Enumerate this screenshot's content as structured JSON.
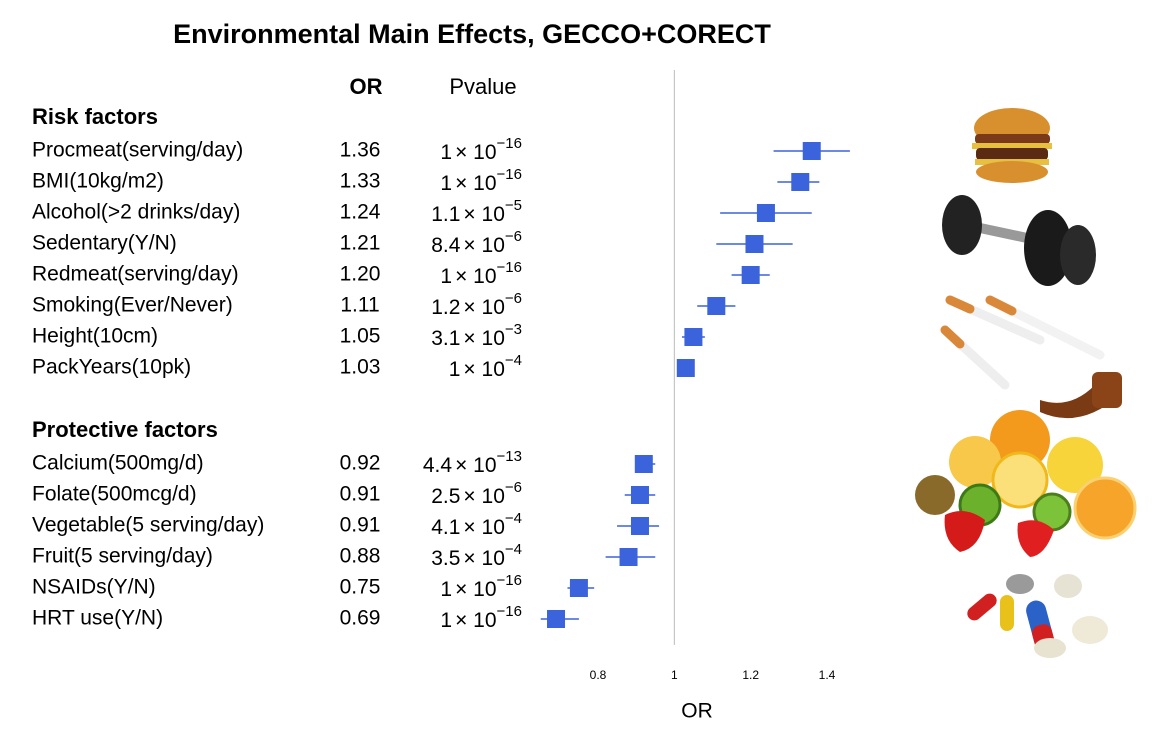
{
  "chart_data": {
    "type": "forest",
    "title": "Environmental Main Effects, GECCO+CORECT",
    "or_header": "OR",
    "pvalue_header": "Pvalue",
    "x_label": "OR",
    "xlim": [
      0.6,
      1.5
    ],
    "xticks": [
      0.8,
      1,
      1.2,
      1.4
    ],
    "reference": 1,
    "color": "#3b63db",
    "groups": [
      {
        "label": "Risk factors",
        "labels": [
          "Procmeat(serving/day)",
          "BMI(10kg/m2)",
          "Alcohol(>2 drinks/day)",
          "Sedentary(Y/N)",
          "Redmeat(serving/day)",
          "Smoking(Ever/Never)",
          "Height(10cm)",
          "PackYears(10pk)"
        ],
        "values": [
          1.36,
          1.33,
          1.24,
          1.21,
          1.2,
          1.11,
          1.05,
          1.03
        ],
        "value_labels": [
          "1.36",
          "1.33",
          "1.24",
          "1.21",
          "1.20",
          "1.11",
          "1.05",
          "1.03"
        ],
        "ci": [
          [
            1.26,
            1.46
          ],
          [
            1.27,
            1.38
          ],
          [
            1.12,
            1.36
          ],
          [
            1.11,
            1.31
          ],
          [
            1.15,
            1.25
          ],
          [
            1.06,
            1.16
          ],
          [
            1.02,
            1.08
          ],
          [
            1.01,
            1.05
          ]
        ],
        "pvalues": [
          {
            "coef": "1",
            "base": "× 10",
            "exp": "−16"
          },
          {
            "coef": "1",
            "base": "× 10",
            "exp": "−16"
          },
          {
            "coef": "1.1",
            "base": "× 10",
            "exp": "−5"
          },
          {
            "coef": "8.4",
            "base": "× 10",
            "exp": "−6"
          },
          {
            "coef": "1",
            "base": "× 10",
            "exp": "−16"
          },
          {
            "coef": "1.2",
            "base": "× 10",
            "exp": "−6"
          },
          {
            "coef": "3.1",
            "base": "× 10",
            "exp": "−3"
          },
          {
            "coef": "1",
            "base": "× 10",
            "exp": "−4"
          }
        ]
      },
      {
        "label": "Protective factors",
        "labels": [
          "Calcium(500mg/d)",
          "Folate(500mcg/d)",
          "Vegetable(5 serving/day)",
          "Fruit(5 serving/day)",
          "NSAIDs(Y/N)",
          "HRT use(Y/N)"
        ],
        "values": [
          0.92,
          0.91,
          0.91,
          0.88,
          0.75,
          0.69
        ],
        "value_labels": [
          "0.92",
          "0.91",
          "0.91",
          "0.88",
          "0.75",
          "0.69"
        ],
        "ci": [
          [
            0.9,
            0.95
          ],
          [
            0.87,
            0.95
          ],
          [
            0.85,
            0.96
          ],
          [
            0.82,
            0.95
          ],
          [
            0.72,
            0.79
          ],
          [
            0.65,
            0.75
          ]
        ],
        "pvalues": [
          {
            "coef": "4.4",
            "base": "× 10",
            "exp": "−13"
          },
          {
            "coef": "2.5",
            "base": "× 10",
            "exp": "−6"
          },
          {
            "coef": "4.1",
            "base": "× 10",
            "exp": "−4"
          },
          {
            "coef": "3.5",
            "base": "× 10",
            "exp": "−4"
          },
          {
            "coef": "1",
            "base": "× 10",
            "exp": "−16"
          },
          {
            "coef": "1",
            "base": "× 10",
            "exp": "−16"
          }
        ]
      }
    ]
  }
}
